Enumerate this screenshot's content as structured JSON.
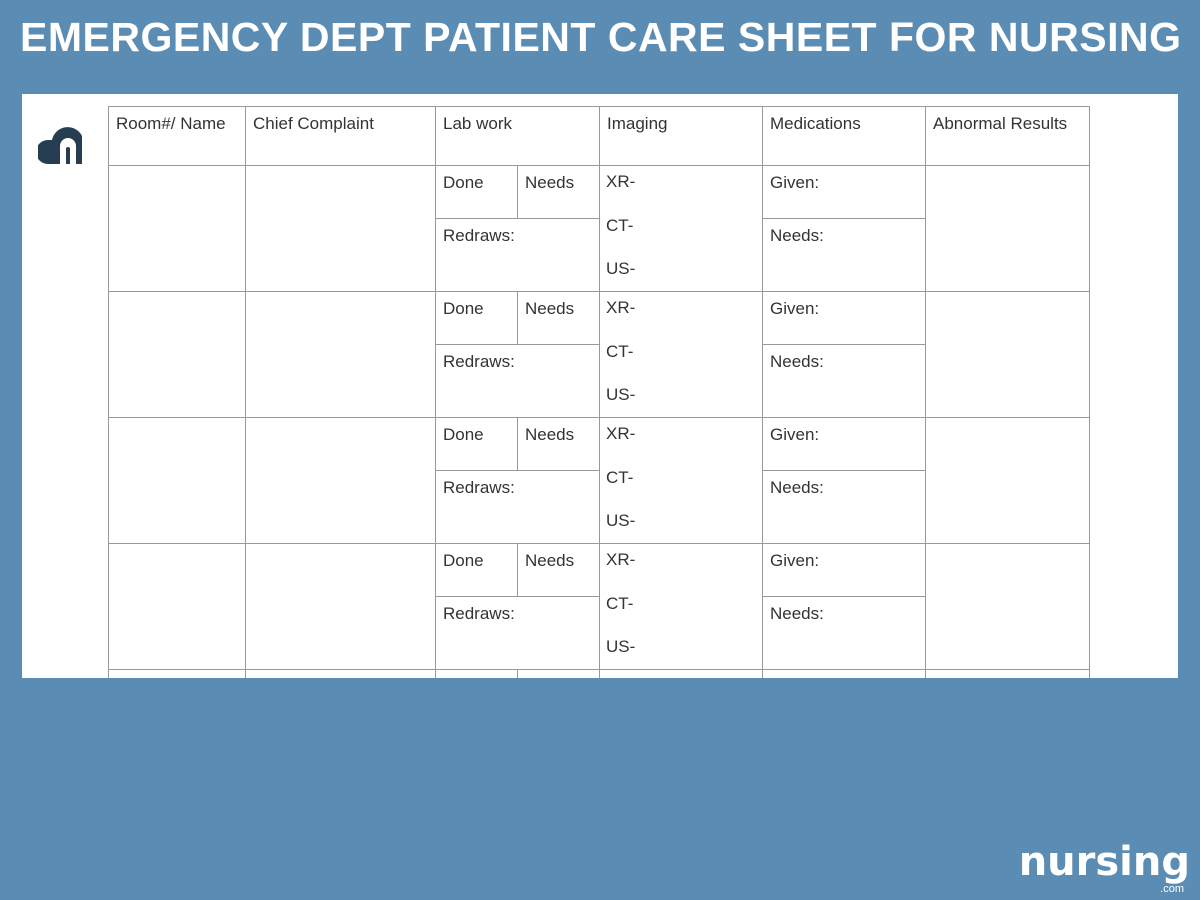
{
  "title": "EMERGENCY DEPT PATIENT CARE SHEET FOR NURSING",
  "colors": {
    "background": "#5b8db4",
    "logo": "#263d52",
    "grid": "#999999"
  },
  "table": {
    "headers": [
      "Room#/ Name",
      "Chief Complaint",
      "Lab work",
      "Imaging",
      "Medications",
      "Abnormal Results"
    ],
    "row_labels": {
      "done": "Done",
      "needs": "Needs",
      "redraws": "Redraws:",
      "xr": "XR-",
      "ct": "CT-",
      "us": "US-",
      "given": "Given:",
      "med_needs": "Needs:"
    },
    "visible_rows": 4
  },
  "brand": {
    "wordmark": "nursing",
    "domain": ".com"
  }
}
